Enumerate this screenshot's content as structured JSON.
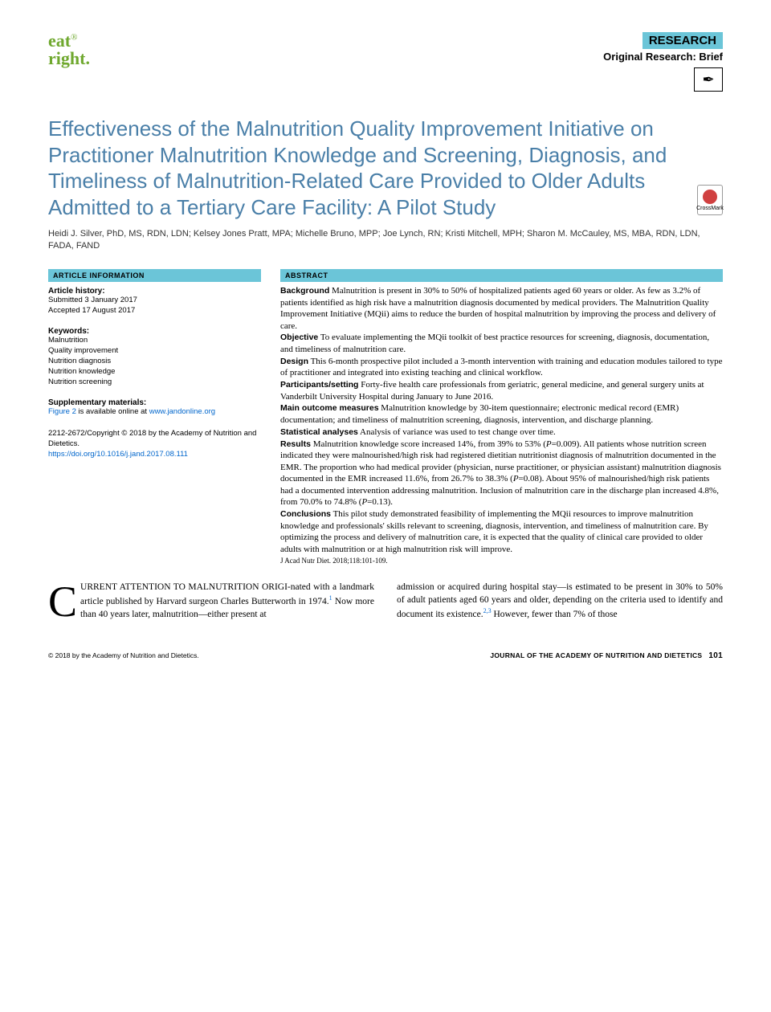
{
  "header": {
    "logo_line1": "eat",
    "logo_line2": "right.",
    "logo_reg": "®",
    "research_label": "RESEARCH",
    "research_sub": "Original Research: Brief",
    "icon_glyph": "✒"
  },
  "title": "Effectiveness of the Malnutrition Quality Improvement Initiative on Practitioner Malnutrition Knowledge and Screening, Diagnosis, and Timeliness of Malnutrition-Related Care Provided to Older Adults Admitted to a Tertiary Care Facility: A Pilot Study",
  "crossmark_label": "CrossMark",
  "authors": "Heidi J. Silver, PhD, MS, RDN, LDN; Kelsey Jones Pratt, MPA; Michelle Bruno, MPP; Joe Lynch, RN; Kristi Mitchell, MPH; Sharon M. McCauley, MS, MBA, RDN, LDN, FADA, FAND",
  "article_info": {
    "header": "ARTICLE INFORMATION",
    "history_label": "Article history:",
    "history_text": "Submitted 3 January 2017\nAccepted 17 August 2017",
    "keywords_label": "Keywords:",
    "keywords_text": "Malnutrition\nQuality improvement\nNutrition diagnosis\nNutrition knowledge\nNutrition screening",
    "supp_label": "Supplementary materials:",
    "supp_prefix": "Figure 2",
    "supp_mid": " is available online at ",
    "supp_link": "www.jandonline.org",
    "copyright": "2212-2672/Copyright © 2018 by the Academy of Nutrition and Dietetics.",
    "doi": "https://doi.org/10.1016/j.jand.2017.08.111"
  },
  "abstract": {
    "header": "ABSTRACT",
    "background_label": "Background",
    "background": " Malnutrition is present in 30% to 50% of hospitalized patients aged 60 years or older. As few as 3.2% of patients identified as high risk have a malnutrition diagnosis documented by medical providers. The Malnutrition Quality Improvement Initiative (MQii) aims to reduce the burden of hospital malnutrition by improving the process and delivery of care.",
    "objective_label": "Objective",
    "objective": " To evaluate implementing the MQii toolkit of best practice resources for screening, diagnosis, documentation, and timeliness of malnutrition care.",
    "design_label": "Design",
    "design": " This 6-month prospective pilot included a 3-month intervention with training and education modules tailored to type of practitioner and integrated into existing teaching and clinical workflow.",
    "participants_label": "Participants/setting",
    "participants": " Forty-five health care professionals from geriatric, general medicine, and general surgery units at Vanderbilt University Hospital during January to June 2016.",
    "measures_label": "Main outcome measures",
    "measures": " Malnutrition knowledge by 30-item questionnaire; electronic medical record (EMR) documentation; and timeliness of malnutrition screening, diagnosis, intervention, and discharge planning.",
    "stats_label": "Statistical analyses",
    "stats": " Analysis of variance was used to test change over time.",
    "results_label": "Results",
    "results_a": " Malnutrition knowledge score increased 14%, from 39% to 53% (",
    "results_p1": "P",
    "results_b": "=0.009). All patients whose nutrition screen indicated they were malnourished/high risk had registered dietitian nutritionist diagnosis of malnutrition documented in the EMR. The proportion who had medical provider (physician, nurse practitioner, or physician assistant) malnutrition diagnosis documented in the EMR increased 11.6%, from 26.7% to 38.3% (",
    "results_p2": "P",
    "results_c": "=0.08). About 95% of malnourished/high risk patients had a documented intervention addressing malnutrition. Inclusion of malnutrition care in the discharge plan increased 4.8%, from 70.0% to 74.8% (",
    "results_p3": "P",
    "results_d": "=0.13).",
    "conclusions_label": "Conclusions",
    "conclusions": " This pilot study demonstrated feasibility of implementing the MQii resources to improve malnutrition knowledge and professionals' skills relevant to screening, diagnosis, intervention, and timeliness of malnutrition care. By optimizing the process and delivery of malnutrition care, it is expected that the quality of clinical care provided to older adults with malnutrition or at high malnutrition risk will improve.",
    "journal_ref": "J Acad Nutr Diet. 2018;118:101-109."
  },
  "body": {
    "col1_a": "URRENT ATTENTION TO MALNUTRITION ORIGI-nated with a landmark article published by Harvard surgeon Charles Butterworth in 1974.",
    "col1_ref1": "1",
    "col1_b": " Now more than 40 years later, malnutrition—either present at",
    "col2_a": "admission or acquired during hospital stay—is estimated to be present in 30% to 50% of adult patients aged 60 years and older, depending on the criteria used to identify and document its existence.",
    "col2_ref": "2,3",
    "col2_b": " However, fewer than 7% of those"
  },
  "footer": {
    "left": "© 2018 by the Academy of Nutrition and Dietetics.",
    "right_journal": "JOURNAL OF THE ACADEMY OF NUTRITION AND DIETETICS",
    "page": "101"
  },
  "colors": {
    "accent_teal": "#6bc5d8",
    "title_blue": "#4a7fa8",
    "logo_green": "#6fa82e",
    "link_blue": "#0066cc"
  }
}
